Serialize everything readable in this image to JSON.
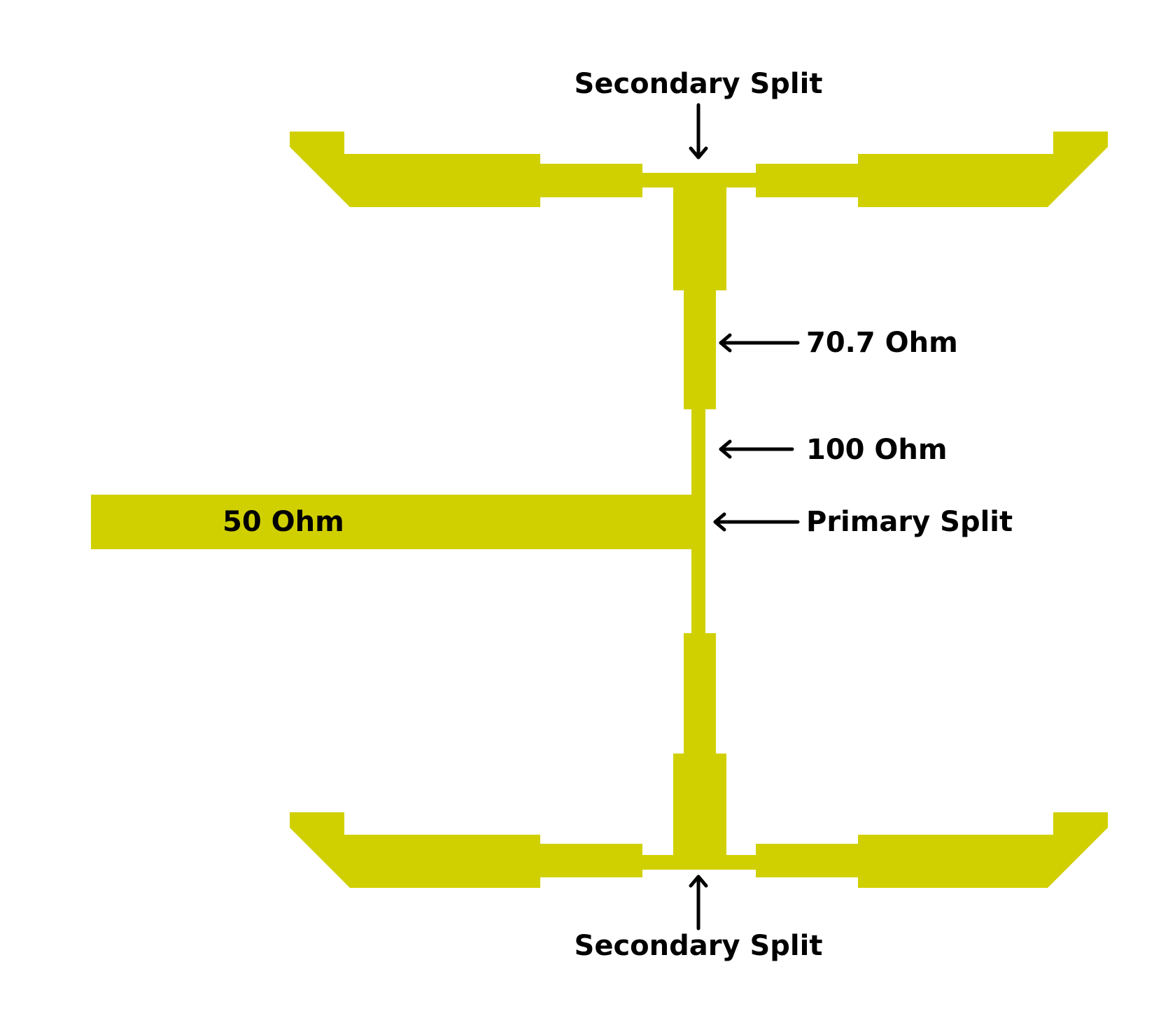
{
  "colors": {
    "trace": "#d0d000",
    "background": "#ffffff",
    "text": "#000000"
  },
  "labels": {
    "secondary_split_top": "Secondary Split",
    "secondary_split_bottom": "Secondary Split",
    "impedance_70_7": "70.7 Ohm",
    "impedance_100": "100 Ohm",
    "primary_split": "Primary Split",
    "impedance_50": "50 Ohm"
  }
}
